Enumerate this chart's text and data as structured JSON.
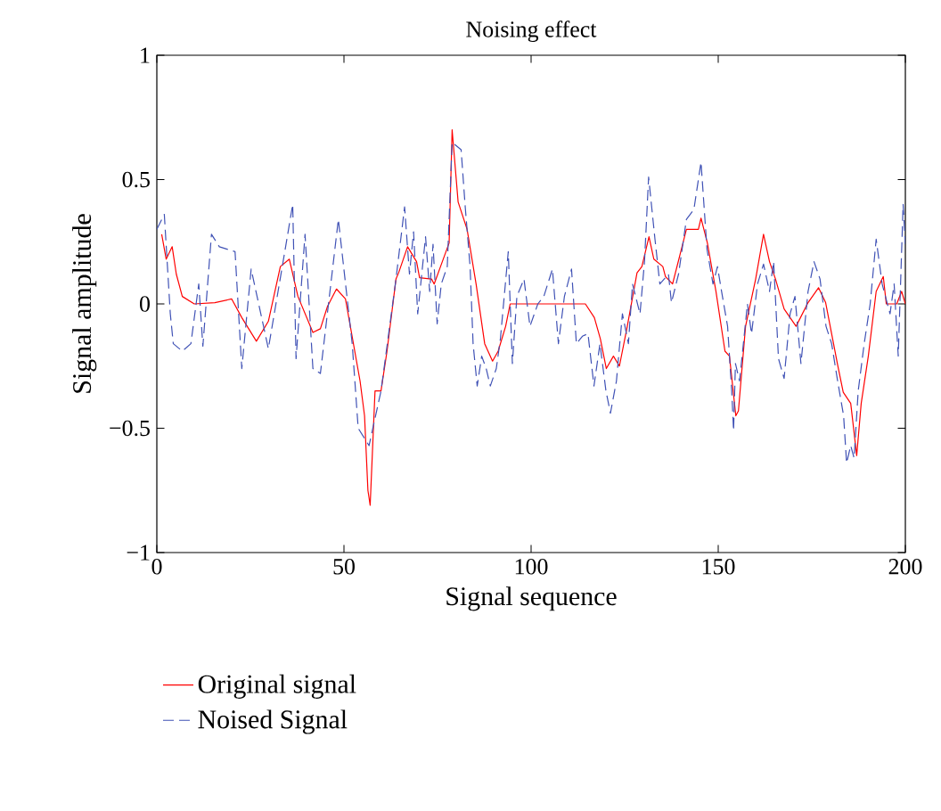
{
  "chart_data": {
    "type": "line",
    "title": "Noising effect",
    "xlabel": "Signal sequence",
    "ylabel": "Signal amplitude",
    "xlim": [
      0,
      200
    ],
    "xticks": [
      0,
      50,
      100,
      150,
      200
    ],
    "ylim": [
      -1,
      1
    ],
    "yticks": [
      {
        "value": -1,
        "label": "−1"
      },
      {
        "value": -0.5,
        "label": "−0.5"
      },
      0,
      0.5,
      1
    ],
    "legend": "bottom left",
    "marker": "none",
    "grid": false,
    "series": [
      {
        "name": "Original signal",
        "color": "#ff0000",
        "line_style": "solid",
        "x": [
          1.3,
          2.5,
          4.1,
          5.2,
          6.8,
          10,
          15.5,
          20,
          22.7,
          26.6,
          29.8,
          33,
          35.4,
          37.7,
          41.7,
          43.7,
          45.6,
          48,
          50.4,
          54.3,
          55.5,
          56.4,
          57,
          58.3,
          59.9,
          61.5,
          63.9,
          64.6,
          67,
          69.4,
          70.2,
          73.4,
          74.1,
          75.8,
          78.1,
          78.9,
          80.5,
          82.9,
          85.3,
          87.6,
          89.7,
          91.2,
          93.2,
          94.4,
          99.5,
          104.3,
          114.5,
          116.9,
          118.5,
          120.1,
          122,
          123.6,
          125.7,
          128.3,
          129.6,
          131.5,
          132.8,
          135.2,
          135.9,
          137.8,
          141.5,
          144.7,
          145.4,
          147.1,
          149.4,
          151.8,
          153,
          154.7,
          155.4,
          157.3,
          160,
          162.1,
          163.7,
          165.3,
          167.6,
          170.8,
          174,
          176.8,
          178.7,
          181.9,
          183.4,
          185.4,
          187,
          188.2,
          190.1,
          192.2,
          194.1,
          194.9,
          197.7,
          199,
          200
        ],
        "values": [
          0.28,
          0.18,
          0.23,
          0.12,
          0.03,
          0,
          0.005,
          0.02,
          -0.055,
          -0.15,
          -0.07,
          0.15,
          0.18,
          0.03,
          -0.115,
          -0.1,
          -0.01,
          0.06,
          0.02,
          -0.31,
          -0.45,
          -0.75,
          -0.81,
          -0.35,
          -0.35,
          -0.19,
          0.1,
          0.125,
          0.23,
          0.17,
          0.105,
          0.1,
          0.08,
          0.15,
          0.245,
          0.7,
          0.41,
          0.3,
          0.08,
          -0.16,
          -0.23,
          -0.19,
          -0.09,
          0,
          0,
          0,
          0,
          -0.055,
          -0.14,
          -0.26,
          -0.21,
          -0.25,
          -0.09,
          0.125,
          0.15,
          0.27,
          0.18,
          0.15,
          0.11,
          0.08,
          0.3,
          0.3,
          0.345,
          0.245,
          0.05,
          -0.19,
          -0.21,
          -0.45,
          -0.43,
          -0.09,
          0.1,
          0.28,
          0.17,
          0.1,
          -0.02,
          -0.09,
          0.005,
          0.065,
          0.005,
          -0.245,
          -0.355,
          -0.4,
          -0.61,
          -0.4,
          -0.21,
          0.05,
          0.11,
          0,
          0,
          0.05,
          0
        ]
      },
      {
        "name": "Noised Signal",
        "color": "#3f51b5",
        "line_style": "dashed",
        "x": [
          0,
          2,
          3.6,
          4.4,
          6.8,
          9.1,
          11.2,
          12.3,
          14.6,
          16.7,
          20.9,
          22.7,
          25.2,
          29.8,
          34.3,
          36.3,
          37.2,
          39.6,
          41.7,
          43.7,
          48.5,
          52.2,
          53.8,
          56.7,
          59.9,
          63.9,
          66.2,
          67.5,
          68.6,
          69.7,
          71.8,
          72.9,
          73.8,
          74.9,
          76,
          77.6,
          78.9,
          81.3,
          82.4,
          83.7,
          84.5,
          85.6,
          86.8,
          88,
          89.1,
          90.7,
          91.8,
          93.9,
          95,
          96.2,
          98.1,
          99.7,
          101.8,
          103.4,
          105.7,
          107.3,
          108.9,
          110.8,
          112.1,
          113.7,
          115.2,
          116.8,
          118.4,
          120,
          121.2,
          122.8,
          124.4,
          126,
          127.1,
          129.1,
          130.3,
          131.4,
          133.1,
          134.4,
          136.7,
          137.5,
          139.4,
          141.5,
          143.5,
          145.4,
          147,
          148.6,
          149.8,
          150.9,
          152.5,
          153.6,
          154.1,
          154.6,
          155.7,
          157.8,
          158.9,
          160.5,
          162.1,
          163.7,
          164.8,
          166.1,
          167.6,
          169.2,
          170.5,
          172.1,
          174,
          175.6,
          177.2,
          178.8,
          180.3,
          181.9,
          183.5,
          184.3,
          185.4,
          186.3,
          187.4,
          189,
          190.6,
          192.2,
          193.8,
          195.9,
          197,
          198.1,
          199.4,
          200
        ],
        "values": [
          0.3,
          0.36,
          -0.04,
          -0.16,
          -0.19,
          -0.16,
          0.08,
          -0.17,
          0.28,
          0.23,
          0.21,
          -0.26,
          0.14,
          -0.18,
          0.22,
          0.4,
          -0.22,
          0.28,
          -0.26,
          -0.28,
          0.34,
          -0.16,
          -0.5,
          -0.57,
          -0.35,
          0.1,
          0.39,
          0.12,
          0.29,
          -0.04,
          0.27,
          0.05,
          0.24,
          -0.08,
          0.08,
          0.15,
          0.65,
          0.62,
          0.39,
          0.15,
          -0.16,
          -0.33,
          -0.21,
          -0.26,
          -0.33,
          -0.26,
          -0.14,
          0.21,
          -0.24,
          0.03,
          0.1,
          -0.09,
          0,
          0.03,
          0.14,
          -0.16,
          0.03,
          0.14,
          -0.16,
          -0.13,
          -0.12,
          -0.33,
          -0.16,
          -0.35,
          -0.44,
          -0.31,
          -0.04,
          -0.16,
          0.08,
          -0.04,
          0.17,
          0.51,
          0.26,
          0.08,
          0.12,
          0.005,
          0.12,
          0.34,
          0.38,
          0.57,
          0.22,
          0.08,
          0.15,
          0.05,
          -0.09,
          -0.35,
          -0.51,
          -0.24,
          -0.31,
          0,
          -0.12,
          0.08,
          0.16,
          0.05,
          0.17,
          -0.22,
          -0.3,
          -0.04,
          0.03,
          -0.24,
          0.05,
          0.17,
          0.1,
          -0.09,
          -0.16,
          -0.31,
          -0.45,
          -0.64,
          -0.57,
          -0.62,
          -0.35,
          -0.16,
          0,
          0.26,
          0.08,
          -0.04,
          0.08,
          -0.21,
          0.4,
          0.24
        ]
      }
    ]
  }
}
